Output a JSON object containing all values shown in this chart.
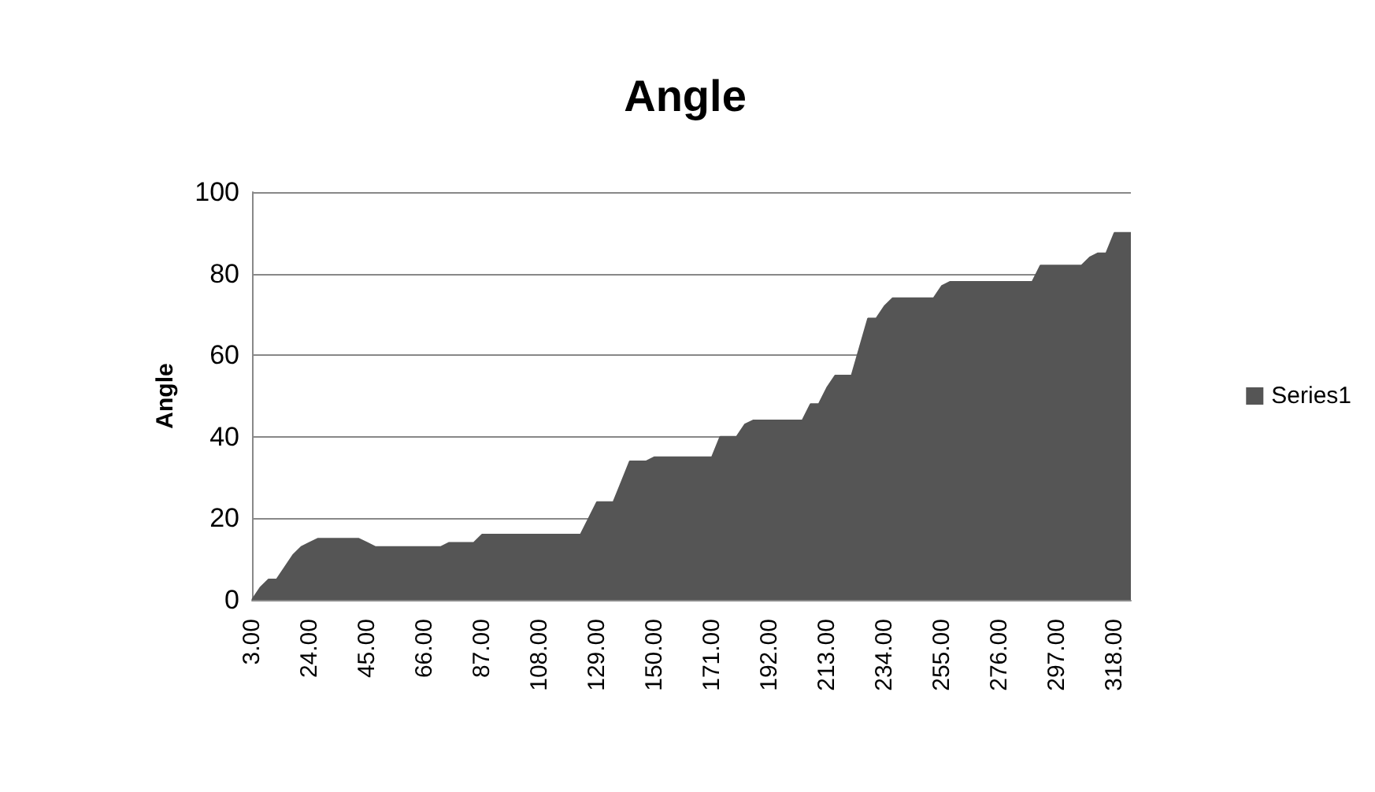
{
  "chart_data": {
    "type": "area",
    "title": "Angle",
    "ylabel": "Angle",
    "categories": [
      "3.00",
      null,
      null,
      null,
      null,
      null,
      null,
      "24.00",
      null,
      null,
      null,
      null,
      null,
      null,
      "45.00",
      null,
      null,
      null,
      null,
      null,
      null,
      "66.00",
      null,
      null,
      null,
      null,
      null,
      null,
      "87.00",
      null,
      null,
      null,
      null,
      null,
      null,
      "108.00",
      null,
      null,
      null,
      null,
      null,
      null,
      "129.00",
      null,
      null,
      null,
      null,
      null,
      null,
      "150.00",
      null,
      null,
      null,
      null,
      null,
      null,
      "171.00",
      null,
      null,
      null,
      null,
      null,
      null,
      "192.00",
      null,
      null,
      null,
      null,
      null,
      null,
      "213.00",
      null,
      null,
      null,
      null,
      null,
      null,
      "234.00",
      null,
      null,
      null,
      null,
      null,
      null,
      "255.00",
      null,
      null,
      null,
      null,
      null,
      null,
      "276.00",
      null,
      null,
      null,
      null,
      null,
      null,
      "297.00",
      null,
      null,
      null,
      null,
      null,
      null,
      "318.00",
      null,
      null
    ],
    "series": [
      {
        "name": "Series1",
        "color": "#555555",
        "values": [
          0,
          3,
          5,
          5,
          8,
          11,
          13,
          14,
          15,
          15,
          15,
          15,
          15,
          15,
          14,
          13,
          13,
          13,
          13,
          13,
          13,
          13,
          13,
          13,
          14,
          14,
          14,
          14,
          16,
          16,
          16,
          16,
          16,
          16,
          16,
          16,
          16,
          16,
          16,
          16,
          16,
          20,
          24,
          24,
          24,
          29,
          34,
          34,
          34,
          35,
          35,
          35,
          35,
          35,
          35,
          35,
          35,
          40,
          40,
          40,
          43,
          44,
          44,
          44,
          44,
          44,
          44,
          44,
          48,
          48,
          52,
          55,
          55,
          55,
          62,
          69,
          69,
          72,
          74,
          74,
          74,
          74,
          74,
          74,
          77,
          78,
          78,
          78,
          78,
          78,
          78,
          78,
          78,
          78,
          78,
          78,
          82,
          82,
          82,
          82,
          82,
          82,
          84,
          85,
          85,
          90,
          90,
          90
        ]
      }
    ],
    "ylim": [
      0,
      100
    ],
    "yticks": [
      0,
      20,
      40,
      60,
      80,
      100
    ],
    "grid": "y",
    "legend": "right"
  }
}
